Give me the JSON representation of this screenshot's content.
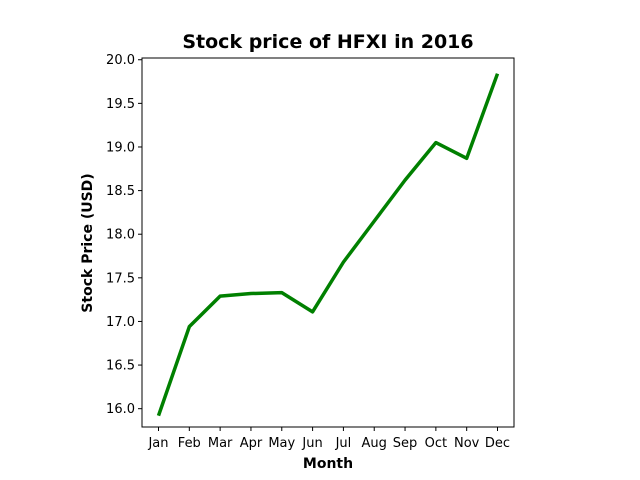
{
  "chart_data": {
    "type": "line",
    "title": "Stock price of HFXI in 2016",
    "xlabel": "Month",
    "ylabel": "Stock Price (USD)",
    "categories": [
      "Jan",
      "Feb",
      "Mar",
      "Apr",
      "May",
      "Jun",
      "Jul",
      "Aug",
      "Sep",
      "Oct",
      "Nov",
      "Dec"
    ],
    "series": [
      {
        "values": [
          15.92,
          16.94,
          17.29,
          17.32,
          17.33,
          17.11,
          17.68,
          18.15,
          18.62,
          19.05,
          18.87,
          19.84
        ],
        "color": "#008000"
      }
    ],
    "ylim": [
      15.79,
      20.02
    ],
    "yticks": [
      16.0,
      16.5,
      17.0,
      17.5,
      18.0,
      18.5,
      19.0,
      19.5,
      20.0
    ],
    "ytick_labels": [
      "16.0",
      "16.5",
      "17.0",
      "17.5",
      "18.0",
      "18.5",
      "19.0",
      "19.5",
      "20.0"
    ],
    "grid": false,
    "legend": "none"
  }
}
